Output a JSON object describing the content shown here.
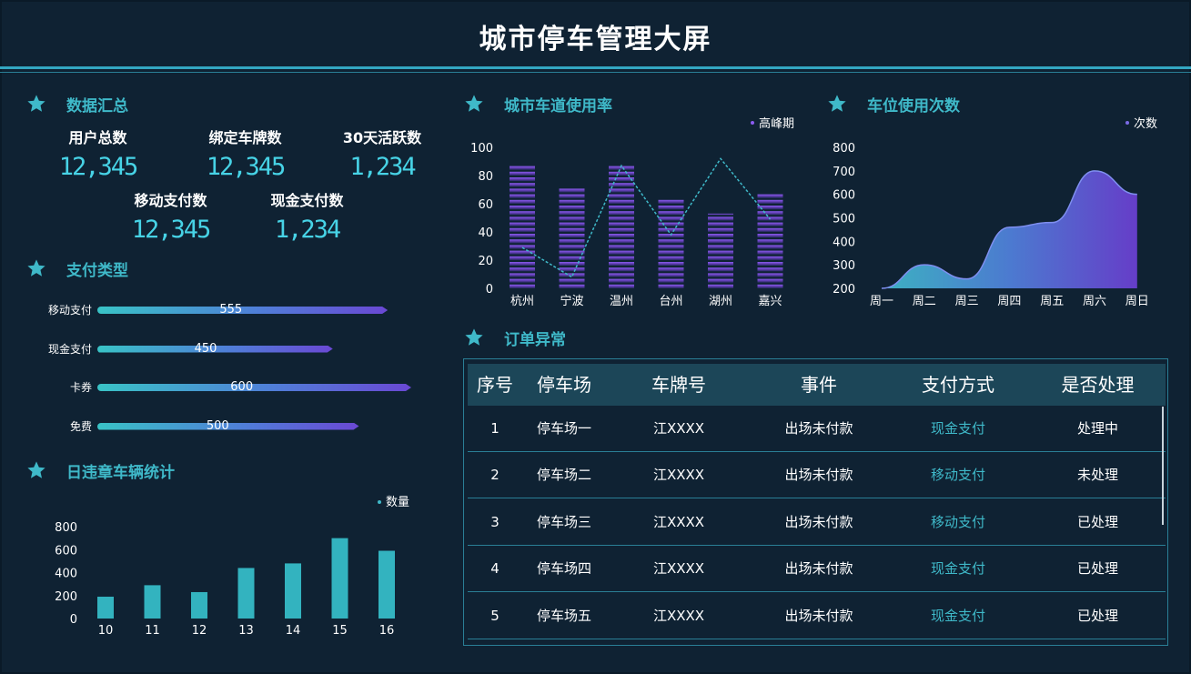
{
  "title": "城市停车管理大屏",
  "colors": {
    "accent": "#3fb9c9",
    "purple": "#6a48d4",
    "bg": "#0f2233"
  },
  "sections": {
    "summary": "数据汇总",
    "pay_type": "支付类型",
    "violation": "日违章车辆统计",
    "lane": "城市车道使用率",
    "parking": "车位使用次数",
    "orders": "订单异常"
  },
  "summary": [
    {
      "label": "用户总数",
      "value": "12,345"
    },
    {
      "label": "绑定车牌数",
      "value": "12,345"
    },
    {
      "label": "30天活跃数",
      "value": "1,234"
    },
    {
      "label": "移动支付数",
      "value": "12,345"
    },
    {
      "label": "现金支付数",
      "value": "1,234"
    }
  ],
  "payment_types": [
    {
      "name": "移动支付",
      "value": 555
    },
    {
      "name": "现金支付",
      "value": 450
    },
    {
      "name": "卡券",
      "value": 600
    },
    {
      "name": "免费",
      "value": 500
    }
  ],
  "chart_data": [
    {
      "type": "bar",
      "id": "violation",
      "legend": "数量",
      "categories": [
        "10",
        "11",
        "12",
        "13",
        "14",
        "15",
        "16"
      ],
      "values": [
        190,
        290,
        230,
        440,
        480,
        700,
        590
      ],
      "yticks": [
        "0",
        "200",
        "400",
        "600",
        "800"
      ],
      "ylim": [
        0,
        800
      ]
    },
    {
      "type": "bar",
      "id": "lane",
      "legend": "高峰期",
      "categories": [
        "杭州",
        "宁波",
        "温州",
        "台州",
        "湖州",
        "嘉兴"
      ],
      "bar_values": [
        88,
        71,
        88,
        63,
        53,
        68
      ],
      "line_values": [
        29,
        8,
        87,
        38,
        92,
        49
      ],
      "yticks": [
        "0",
        "20",
        "40",
        "60",
        "80",
        "100"
      ],
      "ylim": [
        0,
        100
      ]
    },
    {
      "type": "area",
      "id": "parking",
      "legend": "次数",
      "categories": [
        "周一",
        "周二",
        "周三",
        "周四",
        "周五",
        "周六",
        "周日"
      ],
      "values": [
        200,
        300,
        240,
        460,
        480,
        700,
        600
      ],
      "yticks": [
        "200",
        "300",
        "400",
        "500",
        "600",
        "700",
        "800"
      ],
      "ylim": [
        200,
        800
      ]
    }
  ],
  "orders": {
    "headers": [
      "序号",
      "停车场",
      "车牌号",
      "事件",
      "支付方式",
      "是否处理"
    ],
    "rows": [
      [
        "1",
        "停车场一",
        "江XXXX",
        "出场未付款",
        "现金支付",
        "处理中"
      ],
      [
        "2",
        "停车场二",
        "江XXXX",
        "出场未付款",
        "移动支付",
        "未处理"
      ],
      [
        "3",
        "停车场三",
        "江XXXX",
        "出场未付款",
        "移动支付",
        "已处理"
      ],
      [
        "4",
        "停车场四",
        "江XXXX",
        "出场未付款",
        "现金支付",
        "已处理"
      ],
      [
        "5",
        "停车场五",
        "江XXXX",
        "出场未付款",
        "现金支付",
        "已处理"
      ]
    ]
  }
}
